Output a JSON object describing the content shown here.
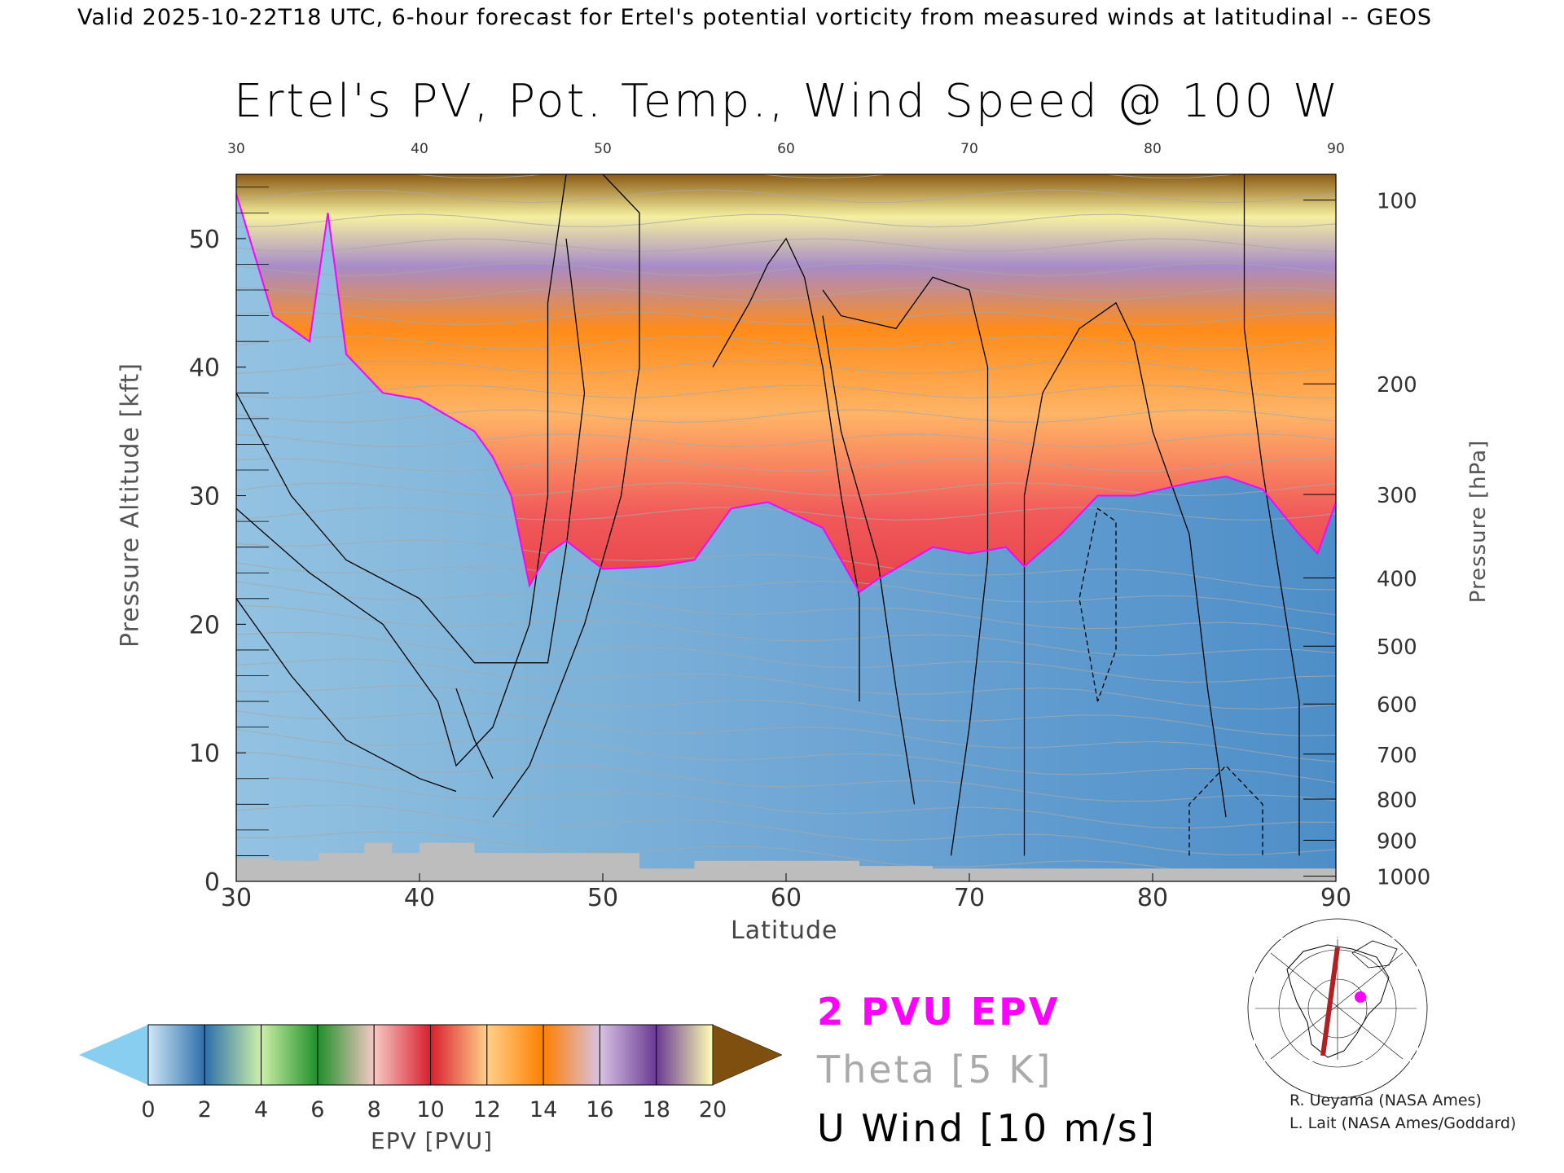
{
  "header": {
    "top_line": "Valid 2025-10-22T18 UTC, 6-hour forecast for Ertel's potential vorticity from measured winds at latitudinal -- GEOS",
    "title": "Ertel's PV, Pot. Temp., Wind Speed @ 100 W"
  },
  "chart_data": {
    "type": "heatmap",
    "title": "Ertel's PV, Pot. Temp., Wind Speed @ 100 W",
    "xlabel": "Latitude",
    "ylabel": "Pressure Altitude [kft]",
    "ylabel_right": "Pressure [hPa]",
    "xlim": [
      30,
      90
    ],
    "ylim": [
      0,
      55
    ],
    "x_ticks": [
      "30",
      "40",
      "50",
      "60",
      "70",
      "80",
      "90"
    ],
    "y_ticks": [
      "0",
      "10",
      "20",
      "30",
      "40",
      "50"
    ],
    "pressure_ticks": [
      {
        "label": "100",
        "kft": 53.0
      },
      {
        "label": "200",
        "kft": 38.7
      },
      {
        "label": "300",
        "kft": 30.1
      },
      {
        "label": "400",
        "kft": 23.6
      },
      {
        "label": "500",
        "kft": 18.3
      },
      {
        "label": "600",
        "kft": 13.8
      },
      {
        "label": "700",
        "kft": 9.9
      },
      {
        "label": "800",
        "kft": 6.4
      },
      {
        "label": "900",
        "kft": 3.2
      },
      {
        "label": "1000",
        "kft": 0.4
      }
    ],
    "tropopause_2pvu_kft": [
      [
        30,
        53.5
      ],
      [
        32,
        44
      ],
      [
        34,
        42
      ],
      [
        35,
        52
      ],
      [
        36,
        41
      ],
      [
        38,
        38
      ],
      [
        40,
        37.5
      ],
      [
        43,
        35
      ],
      [
        44,
        33
      ],
      [
        45,
        30
      ],
      [
        46,
        23
      ],
      [
        47,
        25.5
      ],
      [
        48,
        26.5
      ],
      [
        50,
        24.3
      ],
      [
        53,
        24.5
      ],
      [
        55,
        25
      ],
      [
        56,
        27
      ],
      [
        57,
        29
      ],
      [
        59,
        29.5
      ],
      [
        62,
        27.5
      ],
      [
        64,
        22.5
      ],
      [
        65,
        23.5
      ],
      [
        68,
        26
      ],
      [
        70,
        25.5
      ],
      [
        72,
        26
      ],
      [
        73,
        24.5
      ],
      [
        75,
        27
      ],
      [
        77,
        30
      ],
      [
        79,
        30
      ],
      [
        82,
        31
      ],
      [
        84,
        31.5
      ],
      [
        86,
        30.5
      ],
      [
        88,
        27
      ],
      [
        89,
        25.5
      ],
      [
        90,
        29.5
      ]
    ],
    "colorbar": {
      "label": "EPV [PVU]",
      "ticks": [
        "0",
        "2",
        "4",
        "6",
        "8",
        "10",
        "12",
        "14",
        "16",
        "18",
        "20"
      ],
      "colors": [
        "#cfe7f5",
        "#2d6fab",
        "#ccf0a8",
        "#1f8f2a",
        "#f7c9c6",
        "#d81f2e",
        "#ffd08a",
        "#ff7f00",
        "#d7c3e4",
        "#6a3a93",
        "#ffffb3",
        "#b35806"
      ],
      "under_color": "#87cef0",
      "over_color": "#7f4f0f"
    }
  },
  "legend": {
    "pvu": "2 PVU EPV",
    "theta": "Theta [5 K]",
    "uwind": "U Wind [10 m/s]",
    "pvu_color": "#ff00ff",
    "theta_color": "#aaaaaa"
  },
  "credits": {
    "line1": "R. Ueyama (NASA Ames)",
    "line2": "L. Lait (NASA Ames/Goddard)"
  }
}
